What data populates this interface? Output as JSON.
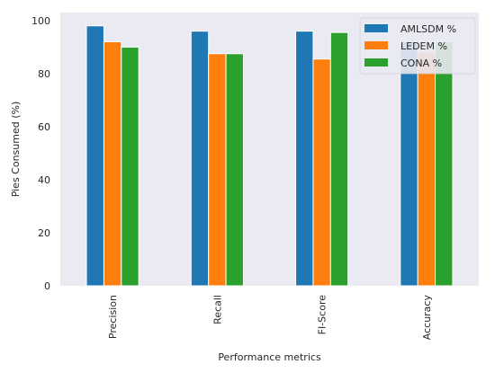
{
  "chart_data": {
    "type": "bar",
    "title": "",
    "xlabel": "Performance metrics",
    "ylabel": "Pies Consumed (%)",
    "categories": [
      "Precision",
      "Recall",
      "FI-Score",
      "Accuracy"
    ],
    "series": [
      {
        "name": "AMLSDM %",
        "color": "#1f77b4",
        "values": [
          98,
          96,
          96,
          92
        ]
      },
      {
        "name": "LEDEM %",
        "color": "#ff7f0e",
        "values": [
          92,
          87.5,
          85.5,
          88
        ]
      },
      {
        "name": "CONA %",
        "color": "#2ca02c",
        "values": [
          90,
          87.5,
          95.5,
          92
        ]
      }
    ],
    "ylim": [
      0,
      103
    ],
    "yticks": [
      0,
      20,
      40,
      60,
      80,
      100
    ],
    "grid": false,
    "legend_position": "top-right",
    "background_color": "#eaeaf2"
  }
}
